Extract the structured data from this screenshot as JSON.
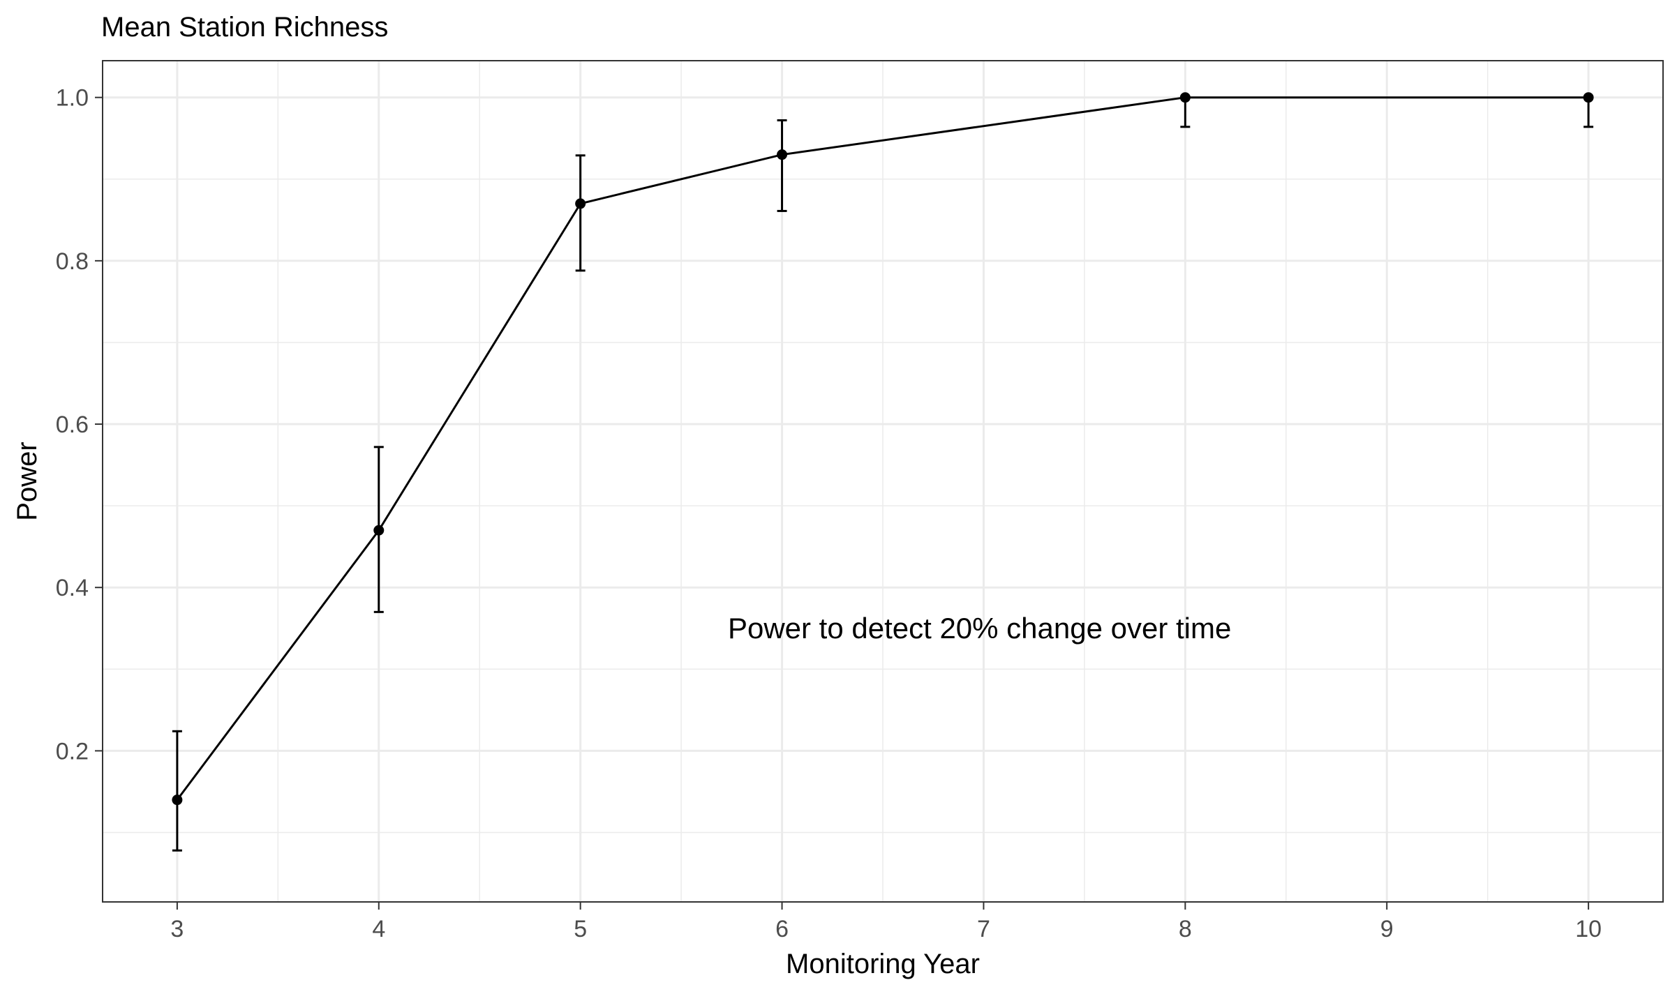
{
  "chart_data": {
    "type": "line",
    "title": "Mean Station Richness",
    "xlabel": "Monitoring Year",
    "ylabel": "Power",
    "annotation": "Power to detect 20% change over time",
    "xlim": [
      2.63,
      10.37
    ],
    "ylim": [
      0.015,
      1.045
    ],
    "x_ticks": [
      3,
      4,
      5,
      6,
      7,
      8,
      9,
      10
    ],
    "y_ticks": [
      0.2,
      0.4,
      0.6,
      0.8,
      1.0
    ],
    "y_tick_labels": [
      "0.2",
      "0.4",
      "0.6",
      "0.8",
      "1.0"
    ],
    "grid": true,
    "series": [
      {
        "x": [
          3,
          4,
          5,
          6,
          8,
          10
        ],
        "y": [
          0.14,
          0.47,
          0.87,
          0.93,
          1.0,
          1.0
        ],
        "lower": [
          0.078,
          0.37,
          0.788,
          0.861,
          0.964,
          0.964
        ],
        "upper": [
          0.224,
          0.572,
          0.929,
          0.972,
          1.0,
          1.0
        ]
      }
    ],
    "colors": {
      "line": "#000000",
      "grid": "#ebebeb",
      "border": "#333333",
      "tick_text": "#4d4d4d"
    }
  }
}
